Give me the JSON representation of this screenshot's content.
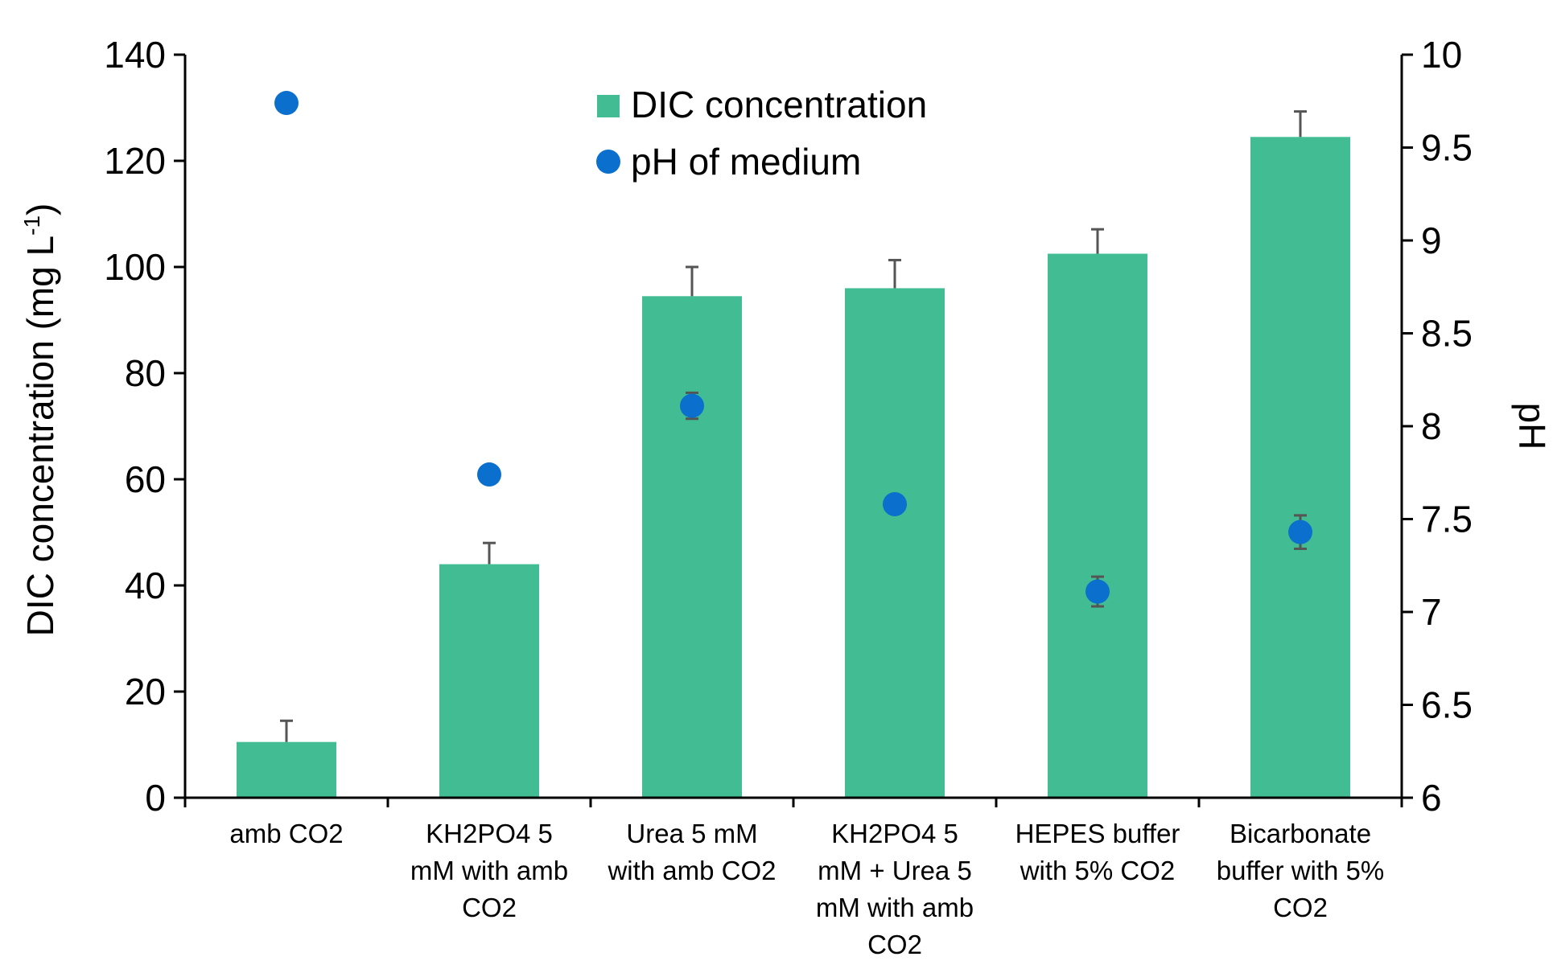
{
  "chart_data": {
    "type": "bar",
    "categories": [
      [
        "amb CO2"
      ],
      [
        "KH2PO4 5",
        "mM with amb",
        "CO2"
      ],
      [
        "Urea 5 mM",
        "with amb CO2"
      ],
      [
        "KH2PO4 5",
        "mM + Urea 5",
        "mM with amb",
        "CO2"
      ],
      [
        "HEPES buffer",
        "with 5% CO2"
      ],
      [
        "Bicarbonate",
        "buffer with 5%",
        "CO2"
      ]
    ],
    "series": [
      {
        "name": "DIC concentration",
        "type": "bar",
        "axis": "left",
        "values": [
          10.5,
          44,
          94.5,
          96,
          102.5,
          124.5
        ],
        "error": [
          4,
          4,
          5.5,
          5.3,
          4.6,
          4.8
        ]
      },
      {
        "name": "pH of medium",
        "type": "scatter",
        "axis": "right",
        "values": [
          9.74,
          7.74,
          8.11,
          7.58,
          7.11,
          7.43
        ],
        "error": [
          0.0,
          0.0,
          0.07,
          0.0,
          0.08,
          0.09
        ]
      }
    ],
    "ylabel_main": "DIC concentration (mg L",
    "ylabel_sup": "-1",
    "ylabel_end": ")",
    "y2label": "pH",
    "ylim": [
      0,
      140
    ],
    "yticks": [
      "0",
      "20",
      "40",
      "60",
      "80",
      "100",
      "120",
      "140"
    ],
    "y2lim": [
      6,
      10
    ],
    "y2ticks": [
      "6",
      "6.5",
      "7",
      "7.5",
      "8",
      "8.5",
      "9",
      "9.5",
      "10"
    ],
    "legend_position": "top-center",
    "grid": false
  },
  "colors": {
    "bar": "#42bd93",
    "point": "#0a6fcd",
    "error": "#555555",
    "axis": "#000000"
  }
}
